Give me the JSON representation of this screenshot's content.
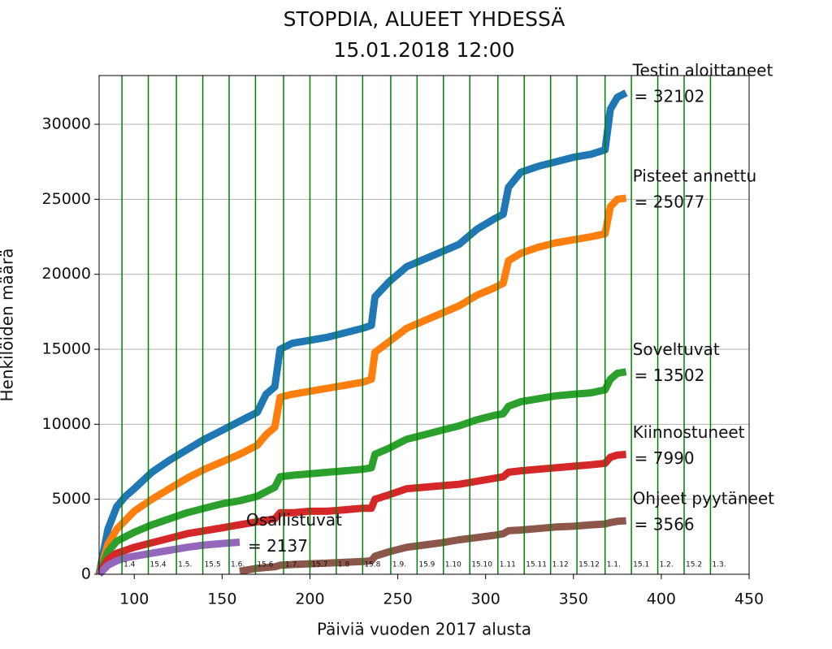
{
  "chart_data": {
    "type": "line",
    "title": "STOPDIA, ALUEET YHDESSÄ",
    "subtitle": "15.01.2018 12:00",
    "x_label": "Päiviä vuoden 2017 alusta",
    "y_label": "Henkilöiden määrä",
    "xlim": [
      80,
      450
    ],
    "ylim": [
      0,
      33250
    ],
    "xticks": [
      100,
      150,
      200,
      250,
      300,
      350,
      400,
      450
    ],
    "yticks": [
      0,
      5000,
      10000,
      15000,
      20000,
      25000,
      30000
    ],
    "grid": true,
    "vline_color": "#008000",
    "vlines": [
      {
        "value": 93,
        "label": "1.4"
      },
      {
        "value": 108,
        "label": "15.4"
      },
      {
        "value": 124,
        "label": "1.5."
      },
      {
        "value": 139,
        "label": "15.5"
      },
      {
        "value": 154,
        "label": "1.6."
      },
      {
        "value": 169,
        "label": "15.6"
      },
      {
        "value": 185,
        "label": "1.7."
      },
      {
        "value": 200,
        "label": "15.7"
      },
      {
        "value": 215,
        "label": "1.8"
      },
      {
        "value": 230,
        "label": "15.8"
      },
      {
        "value": 246,
        "label": "1.9."
      },
      {
        "value": 261,
        "label": "15.9"
      },
      {
        "value": 276,
        "label": "1.10"
      },
      {
        "value": 291,
        "label": "15.10"
      },
      {
        "value": 307,
        "label": "1.11"
      },
      {
        "value": 322,
        "label": "15.11"
      },
      {
        "value": 337,
        "label": "1.12"
      },
      {
        "value": 352,
        "label": "15.12"
      },
      {
        "value": 368,
        "label": "1.1."
      },
      {
        "value": 383,
        "label": "15.1"
      },
      {
        "value": 398,
        "label": "1.2."
      },
      {
        "value": 413,
        "label": "15.2"
      },
      {
        "value": 428,
        "label": "1.3."
      }
    ],
    "x": [
      80,
      85,
      90,
      95,
      100,
      110,
      120,
      130,
      140,
      150,
      160,
      170,
      175,
      180,
      183,
      190,
      200,
      210,
      220,
      230,
      235,
      237,
      245,
      255,
      265,
      275,
      285,
      295,
      305,
      310,
      313,
      320,
      330,
      340,
      350,
      360,
      368,
      371,
      375,
      380
    ],
    "series": [
      {
        "name": "Testin aloittaneet",
        "color": "#1f77b4",
        "values": [
          0,
          3000,
          4500,
          5200,
          5700,
          6800,
          7600,
          8300,
          9000,
          9600,
          10200,
          10800,
          12000,
          12500,
          15000,
          15400,
          15600,
          15800,
          16100,
          16400,
          16600,
          18500,
          19500,
          20500,
          21000,
          21500,
          22000,
          23000,
          23700,
          24000,
          25800,
          26800,
          27200,
          27500,
          27800,
          28000,
          28300,
          31000,
          31800,
          32102
        ],
        "value_labels": [
          null,
          null,
          null,
          null,
          null,
          null,
          null,
          null,
          null,
          null,
          null,
          null,
          null,
          null,
          null,
          null,
          null,
          null,
          null,
          null,
          null,
          null,
          null,
          null,
          null,
          null,
          null,
          null,
          null,
          null,
          null,
          null,
          null,
          null,
          null,
          null,
          null,
          null,
          null,
          "= 32102"
        ]
      },
      {
        "name": "Pisteet annettu",
        "color": "#ff7f0e",
        "values": [
          0,
          2000,
          3000,
          3600,
          4200,
          5000,
          5700,
          6400,
          7000,
          7500,
          8000,
          8600,
          9300,
          9800,
          11800,
          12000,
          12200,
          12400,
          12600,
          12800,
          13000,
          14800,
          15500,
          16400,
          16900,
          17400,
          17900,
          18600,
          19100,
          19400,
          20900,
          21400,
          21800,
          22100,
          22300,
          22500,
          22700,
          24500,
          25000,
          25077
        ],
        "value_labels": [
          null,
          null,
          null,
          null,
          null,
          null,
          null,
          null,
          null,
          null,
          null,
          null,
          null,
          null,
          null,
          null,
          null,
          null,
          null,
          null,
          null,
          null,
          null,
          null,
          null,
          null,
          null,
          null,
          null,
          null,
          null,
          null,
          null,
          null,
          null,
          null,
          null,
          null,
          null,
          "= 25077"
        ]
      },
      {
        "name": "Soveltuvat",
        "color": "#2ca02c",
        "values": [
          0,
          1500,
          2200,
          2500,
          2800,
          3300,
          3700,
          4100,
          4400,
          4700,
          4900,
          5200,
          5500,
          5800,
          6500,
          6600,
          6700,
          6800,
          6900,
          7000,
          7100,
          8000,
          8400,
          9000,
          9300,
          9600,
          9900,
          10300,
          10600,
          10700,
          11200,
          11500,
          11700,
          11900,
          12000,
          12100,
          12300,
          13000,
          13400,
          13502
        ],
        "value_labels": [
          null,
          null,
          null,
          null,
          null,
          null,
          null,
          null,
          null,
          null,
          null,
          null,
          null,
          null,
          null,
          null,
          null,
          null,
          null,
          null,
          null,
          null,
          null,
          null,
          null,
          null,
          null,
          null,
          null,
          null,
          null,
          null,
          null,
          null,
          null,
          null,
          null,
          null,
          null,
          "= 13502"
        ]
      },
      {
        "name": "Kiinnostuneet",
        "color": "#d62728",
        "values": [
          0,
          1000,
          1400,
          1600,
          1800,
          2100,
          2400,
          2700,
          2900,
          3100,
          3300,
          3500,
          3600,
          3700,
          4100,
          4100,
          4200,
          4200,
          4300,
          4400,
          4400,
          5000,
          5300,
          5700,
          5800,
          5900,
          6000,
          6200,
          6400,
          6500,
          6800,
          6900,
          7000,
          7100,
          7200,
          7300,
          7400,
          7800,
          7950,
          7990
        ],
        "value_labels": [
          null,
          null,
          null,
          null,
          null,
          null,
          null,
          null,
          null,
          null,
          null,
          null,
          null,
          null,
          null,
          null,
          null,
          null,
          null,
          null,
          null,
          null,
          null,
          null,
          null,
          null,
          null,
          null,
          null,
          null,
          null,
          null,
          null,
          null,
          null,
          null,
          null,
          null,
          null,
          "= 7990"
        ]
      },
      {
        "name": "Ohjeet pyytäneet",
        "color": "#8c564b",
        "values": [
          null,
          null,
          null,
          null,
          null,
          null,
          null,
          null,
          null,
          null,
          200,
          400,
          450,
          500,
          600,
          650,
          700,
          750,
          800,
          850,
          900,
          1200,
          1500,
          1800,
          1950,
          2100,
          2300,
          2450,
          2600,
          2700,
          2900,
          2950,
          3050,
          3150,
          3200,
          3300,
          3350,
          3450,
          3530,
          3566
        ],
        "value_labels": [
          null,
          null,
          null,
          null,
          null,
          null,
          null,
          null,
          null,
          null,
          null,
          null,
          null,
          null,
          null,
          null,
          null,
          null,
          null,
          null,
          null,
          null,
          null,
          null,
          null,
          null,
          null,
          null,
          null,
          null,
          null,
          null,
          null,
          null,
          null,
          null,
          null,
          null,
          null,
          "= 3566"
        ]
      },
      {
        "name": "Osallistuvat",
        "color": "#9467bd",
        "values": [
          0,
          600,
          900,
          1100,
          1200,
          1400,
          1600,
          1800,
          1950,
          2050,
          2137,
          null,
          null,
          null,
          null,
          null,
          null,
          null,
          null,
          null,
          null,
          null,
          null,
          null,
          null,
          null,
          null,
          null,
          null,
          null,
          null,
          null,
          null,
          null,
          null,
          null,
          null,
          null,
          null,
          null
        ],
        "value_labels": [
          null,
          null,
          null,
          null,
          null,
          null,
          null,
          null,
          null,
          null,
          "= 2137",
          null,
          null,
          null,
          null,
          null,
          null,
          null,
          null,
          null,
          null,
          null,
          null,
          null,
          null,
          null,
          null,
          null,
          null,
          null,
          null,
          null,
          null,
          null,
          null,
          null,
          null,
          null,
          null,
          null
        ]
      }
    ]
  }
}
